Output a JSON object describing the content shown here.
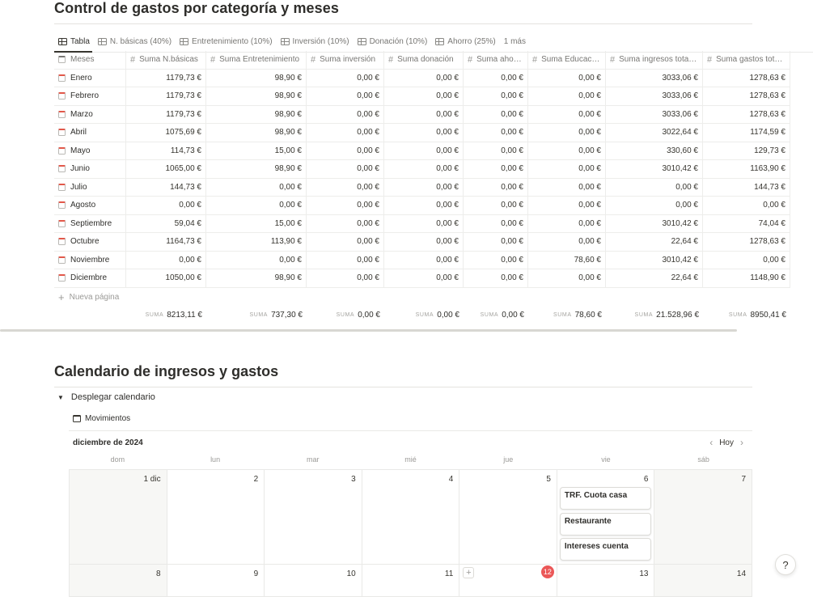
{
  "section1": {
    "title": "Control de gastos por categoría y meses"
  },
  "tabs": [
    {
      "label": "Tabla"
    },
    {
      "label": "N. básicas (40%)"
    },
    {
      "label": "Entretenimiento (10%)"
    },
    {
      "label": "Inversión (10%)"
    },
    {
      "label": "Donación (10%)"
    },
    {
      "label": "Ahorro (25%)"
    }
  ],
  "tabs_more": "1 más",
  "table": {
    "headers": [
      "Meses",
      "Suma N.básicas",
      "Suma Entretenimiento",
      "Suma inversión",
      "Suma donación",
      "Suma aho…",
      "Suma Educac…",
      "Suma ingresos tota…",
      "Suma gastos tot…"
    ],
    "rows": [
      {
        "month": "Enero",
        "values": [
          "1179,73 €",
          "98,90 €",
          "0,00 €",
          "0,00 €",
          "0,00 €",
          "0,00 €",
          "3033,06 €",
          "1278,63 €"
        ]
      },
      {
        "month": "Febrero",
        "values": [
          "1179,73 €",
          "98,90 €",
          "0,00 €",
          "0,00 €",
          "0,00 €",
          "0,00 €",
          "3033,06 €",
          "1278,63 €"
        ]
      },
      {
        "month": "Marzo",
        "values": [
          "1179,73 €",
          "98,90 €",
          "0,00 €",
          "0,00 €",
          "0,00 €",
          "0,00 €",
          "3033,06 €",
          "1278,63 €"
        ]
      },
      {
        "month": "Abril",
        "values": [
          "1075,69 €",
          "98,90 €",
          "0,00 €",
          "0,00 €",
          "0,00 €",
          "0,00 €",
          "3022,64 €",
          "1174,59 €"
        ]
      },
      {
        "month": "Mayo",
        "values": [
          "114,73 €",
          "15,00 €",
          "0,00 €",
          "0,00 €",
          "0,00 €",
          "0,00 €",
          "330,60 €",
          "129,73 €"
        ]
      },
      {
        "month": "Junio",
        "values": [
          "1065,00 €",
          "98,90 €",
          "0,00 €",
          "0,00 €",
          "0,00 €",
          "0,00 €",
          "3010,42 €",
          "1163,90 €"
        ]
      },
      {
        "month": "Julio",
        "values": [
          "144,73 €",
          "0,00 €",
          "0,00 €",
          "0,00 €",
          "0,00 €",
          "0,00 €",
          "0,00 €",
          "144,73 €"
        ]
      },
      {
        "month": "Agosto",
        "values": [
          "0,00 €",
          "0,00 €",
          "0,00 €",
          "0,00 €",
          "0,00 €",
          "0,00 €",
          "0,00 €",
          "0,00 €"
        ]
      },
      {
        "month": "Septiembre",
        "values": [
          "59,04 €",
          "15,00 €",
          "0,00 €",
          "0,00 €",
          "0,00 €",
          "0,00 €",
          "3010,42 €",
          "74,04 €"
        ]
      },
      {
        "month": "Octubre",
        "values": [
          "1164,73 €",
          "113,90 €",
          "0,00 €",
          "0,00 €",
          "0,00 €",
          "0,00 €",
          "22,64 €",
          "1278,63 €"
        ]
      },
      {
        "month": "Noviembre",
        "values": [
          "0,00 €",
          "0,00 €",
          "0,00 €",
          "0,00 €",
          "0,00 €",
          "78,60 €",
          "3010,42 €",
          "0,00 €"
        ]
      },
      {
        "month": "Diciembre",
        "values": [
          "1050,00 €",
          "98,90 €",
          "0,00 €",
          "0,00 €",
          "0,00 €",
          "0,00 €",
          "22,64 €",
          "1148,90 €"
        ]
      }
    ],
    "new_page_label": "Nueva página",
    "sum_label": "SUMA",
    "sums": [
      "8213,11 €",
      "737,30 €",
      "0,00 €",
      "0,00 €",
      "0,00 €",
      "78,60 €",
      "21.528,96 €",
      "8950,41 €"
    ]
  },
  "section2": {
    "title": "Calendario de ingresos y gastos"
  },
  "toggle_label": "Desplegar calendario",
  "calendar": {
    "view_label": "Movimientos",
    "month_label": "diciembre de 2024",
    "today_button": "Hoy",
    "weekdays": [
      "dom",
      "lun",
      "mar",
      "mié",
      "jue",
      "vie",
      "sáb"
    ],
    "weeks": [
      [
        "1 dic",
        "2",
        "3",
        "4",
        "5",
        "6",
        "7"
      ],
      [
        "8",
        "9",
        "10",
        "11",
        "12",
        "13",
        "14"
      ]
    ],
    "today": "12",
    "events_day_6": [
      "TRF. Cuota casa",
      "Restaurante",
      "Intereses cuenta"
    ]
  },
  "help_label": "?"
}
